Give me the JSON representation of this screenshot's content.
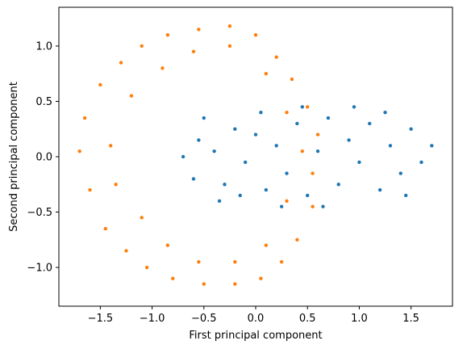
{
  "chart_data": {
    "type": "scatter",
    "title": "",
    "xlabel": "First principal component",
    "ylabel": "Second principal component",
    "xlim": [
      -1.9,
      1.9
    ],
    "ylim": [
      -1.35,
      1.35
    ],
    "x_ticks": [
      -1.5,
      -1.0,
      -0.5,
      0.0,
      0.5,
      1.0,
      1.5
    ],
    "y_ticks": [
      -1.0,
      -0.5,
      0.0,
      0.5,
      1.0
    ],
    "x_tick_labels": [
      "−1.5",
      "−1.0",
      "−0.5",
      "0.0",
      "0.5",
      "1.0",
      "1.5"
    ],
    "y_tick_labels": [
      "−1.0",
      "−0.5",
      "0.0",
      "0.5",
      "1.0"
    ],
    "grid": false,
    "legend": "none",
    "colors": {
      "series_blue": "#1f77b4",
      "series_orange": "#ff7f0e"
    },
    "series": [
      {
        "color": "#1f77b4",
        "shape": "two overlapping filled ellipses",
        "points": [
          [
            -0.7,
            0.0
          ],
          [
            -0.55,
            0.15
          ],
          [
            -0.6,
            -0.2
          ],
          [
            -0.4,
            0.05
          ],
          [
            -0.3,
            -0.25
          ],
          [
            -0.2,
            0.25
          ],
          [
            -0.1,
            -0.05
          ],
          [
            0.0,
            0.2
          ],
          [
            0.1,
            -0.3
          ],
          [
            0.2,
            0.1
          ],
          [
            0.3,
            -0.15
          ],
          [
            0.4,
            0.3
          ],
          [
            0.5,
            -0.35
          ],
          [
            0.6,
            0.05
          ],
          [
            0.7,
            0.35
          ],
          [
            0.8,
            -0.25
          ],
          [
            0.9,
            0.15
          ],
          [
            1.0,
            -0.05
          ],
          [
            1.1,
            0.3
          ],
          [
            1.2,
            -0.3
          ],
          [
            1.3,
            0.1
          ],
          [
            1.4,
            -0.15
          ],
          [
            1.5,
            0.25
          ],
          [
            1.6,
            -0.05
          ],
          [
            1.7,
            0.1
          ],
          [
            -0.5,
            0.35
          ],
          [
            -0.35,
            -0.4
          ],
          [
            0.05,
            0.4
          ],
          [
            0.25,
            -0.45
          ],
          [
            0.95,
            0.45
          ],
          [
            1.25,
            0.4
          ],
          [
            1.45,
            -0.35
          ],
          [
            0.65,
            -0.45
          ],
          [
            -0.15,
            -0.35
          ],
          [
            0.45,
            0.45
          ]
        ]
      },
      {
        "color": "#ff7f0e",
        "shape": "C-shaped annulus opening to the right",
        "points": [
          [
            -1.7,
            0.05
          ],
          [
            -1.65,
            0.35
          ],
          [
            -1.6,
            -0.3
          ],
          [
            -1.5,
            0.65
          ],
          [
            -1.45,
            -0.65
          ],
          [
            -1.3,
            0.85
          ],
          [
            -1.25,
            -0.85
          ],
          [
            -1.1,
            1.0
          ],
          [
            -1.05,
            -1.0
          ],
          [
            -0.85,
            1.1
          ],
          [
            -0.8,
            -1.1
          ],
          [
            -0.55,
            1.15
          ],
          [
            -0.5,
            -1.15
          ],
          [
            -0.25,
            1.18
          ],
          [
            -0.2,
            -1.15
          ],
          [
            0.0,
            1.1
          ],
          [
            0.05,
            -1.1
          ],
          [
            0.2,
            0.9
          ],
          [
            0.25,
            -0.95
          ],
          [
            0.35,
            0.7
          ],
          [
            0.4,
            -0.75
          ],
          [
            0.5,
            0.45
          ],
          [
            0.55,
            -0.45
          ],
          [
            0.6,
            0.2
          ],
          [
            0.55,
            -0.15
          ],
          [
            -1.4,
            0.1
          ],
          [
            -1.35,
            -0.25
          ],
          [
            -1.2,
            0.55
          ],
          [
            -1.1,
            -0.55
          ],
          [
            -0.9,
            0.8
          ],
          [
            -0.85,
            -0.8
          ],
          [
            -0.6,
            0.95
          ],
          [
            -0.55,
            -0.95
          ],
          [
            -0.25,
            1.0
          ],
          [
            -0.2,
            -0.95
          ],
          [
            0.1,
            0.75
          ],
          [
            0.1,
            -0.8
          ],
          [
            0.3,
            0.4
          ],
          [
            0.3,
            -0.4
          ],
          [
            0.45,
            0.05
          ]
        ]
      }
    ]
  }
}
